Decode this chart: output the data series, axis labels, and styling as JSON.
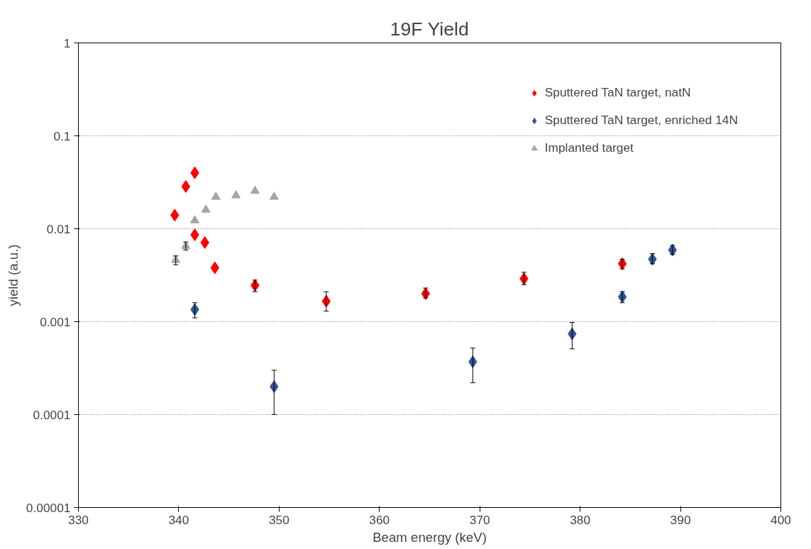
{
  "chart_data": {
    "type": "scatter",
    "title": "19F Yield",
    "xlabel": "Beam energy (keV)",
    "ylabel": "yield (a.u.)",
    "xlim": [
      330,
      400
    ],
    "xticks": [
      330,
      340,
      350,
      360,
      370,
      380,
      390,
      400
    ],
    "ylim": [
      1e-05,
      1
    ],
    "yticks": [
      {
        "value": 1e-05,
        "label": "0.00001"
      },
      {
        "value": 0.0001,
        "label": "0.0001"
      },
      {
        "value": 0.001,
        "label": "0.001"
      },
      {
        "value": 0.01,
        "label": "0.01"
      },
      {
        "value": 0.1,
        "label": "0.1"
      },
      {
        "value": 1,
        "label": "1"
      }
    ],
    "log": true,
    "grid": "y",
    "legend": "top right",
    "series": [
      {
        "name": "Sputtered TaN target, natN",
        "color": "#ff0000",
        "marker": "diamond",
        "x": [
          339.6,
          340.7,
          341.6,
          341.6,
          342.6,
          343.6,
          347.6,
          354.7,
          364.6,
          374.4,
          384.2
        ],
        "values": [
          0.014,
          0.0285,
          0.04,
          0.0086,
          0.0071,
          0.0038,
          0.00246,
          0.00166,
          0.002,
          0.0029,
          0.0042
        ],
        "errors": [
          null,
          null,
          null,
          null,
          null,
          null,
          [
            0.0021,
            0.0028
          ],
          [
            0.0013,
            0.0021
          ],
          [
            0.0018,
            0.0023
          ],
          [
            0.0025,
            0.0034
          ],
          [
            0.0037,
            0.0047
          ]
        ]
      },
      {
        "name": "Sputtered TaN target, enriched 14N",
        "color": "#2f5597",
        "marker": "diamond",
        "x": [
          341.6,
          349.5,
          369.3,
          379.2,
          384.2,
          387.2,
          389.2
        ],
        "values": [
          0.00135,
          0.0002,
          0.00037,
          0.00074,
          0.00185,
          0.0047,
          0.0059
        ],
        "errors": [
          [
            0.0011,
            0.0016
          ],
          [
            0.0001,
            0.0003
          ],
          [
            0.00022,
            0.00052
          ],
          [
            0.00051,
            0.00098
          ],
          [
            0.0016,
            0.0021
          ],
          [
            0.0042,
            0.0054
          ],
          [
            0.0053,
            0.0066
          ]
        ]
      },
      {
        "name": "Implanted target",
        "color": "#a5a5a5",
        "marker": "triangle",
        "x": [
          339.7,
          340.7,
          341.6,
          342.7,
          343.7,
          345.7,
          347.6,
          349.5
        ],
        "values": [
          0.0046,
          0.0065,
          0.0123,
          0.016,
          0.022,
          0.0228,
          0.0255,
          0.022
        ],
        "errors": [
          [
            0.0041,
            0.0051
          ],
          [
            0.0059,
            0.0072
          ],
          null,
          null,
          null,
          null,
          null,
          null
        ]
      }
    ]
  }
}
